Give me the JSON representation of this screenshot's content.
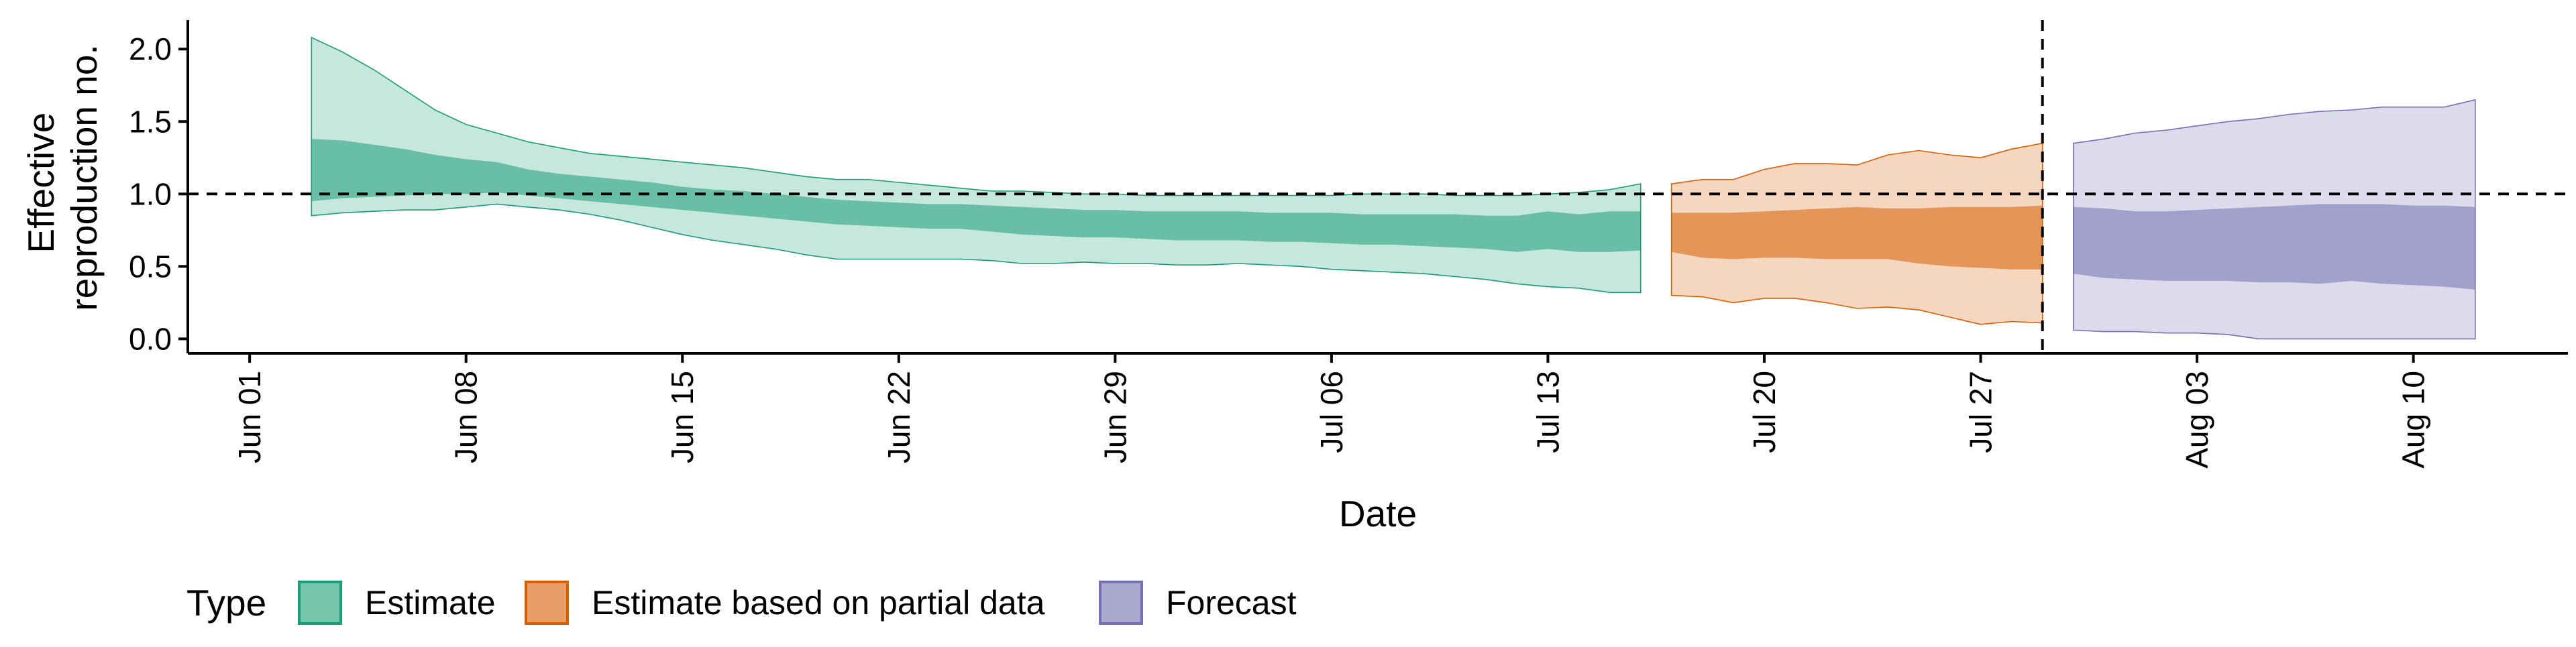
{
  "chart_data": {
    "type": "area",
    "xlabel": "Date",
    "ylabel_lines": [
      "Effective",
      "reproduction no."
    ],
    "ylim": [
      -0.1,
      2.2
    ],
    "yticks": [
      0.0,
      0.5,
      1.0,
      1.5,
      2.0
    ],
    "ytick_labels": [
      "0.0",
      "0.5",
      "1.0",
      "1.5",
      "2.0"
    ],
    "xlim": [
      "2020-05-30",
      "2020-08-15"
    ],
    "xticks": [
      "2020-06-01",
      "2020-06-08",
      "2020-06-15",
      "2020-06-22",
      "2020-06-29",
      "2020-07-06",
      "2020-07-13",
      "2020-07-20",
      "2020-07-27",
      "2020-08-03",
      "2020-08-10"
    ],
    "xtick_labels": [
      "Jun 01",
      "Jun 08",
      "Jun 15",
      "Jun 22",
      "Jun 29",
      "Jul 06",
      "Jul 13",
      "Jul 20",
      "Jul 27",
      "Aug 03",
      "Aug 10"
    ],
    "reference_hline": 1.0,
    "reference_vline": "2020-07-29",
    "legend": {
      "title": "Type",
      "position": "bottom-left",
      "entries": [
        {
          "label": "Estimate",
          "color": "#1B9E77"
        },
        {
          "label": "Estimate based on partial data",
          "color": "#D95F02"
        },
        {
          "label": "Forecast",
          "color": "#7570B3"
        }
      ]
    },
    "series": [
      {
        "name": "Estimate",
        "color": "#1B9E77",
        "dates": [
          "2020-06-03",
          "2020-06-04",
          "2020-06-05",
          "2020-06-06",
          "2020-06-07",
          "2020-06-08",
          "2020-06-09",
          "2020-06-10",
          "2020-06-11",
          "2020-06-12",
          "2020-06-13",
          "2020-06-14",
          "2020-06-15",
          "2020-06-16",
          "2020-06-17",
          "2020-06-18",
          "2020-06-19",
          "2020-06-20",
          "2020-06-21",
          "2020-06-22",
          "2020-06-23",
          "2020-06-24",
          "2020-06-25",
          "2020-06-26",
          "2020-06-27",
          "2020-06-28",
          "2020-06-29",
          "2020-06-30",
          "2020-07-01",
          "2020-07-02",
          "2020-07-03",
          "2020-07-04",
          "2020-07-05",
          "2020-07-06",
          "2020-07-07",
          "2020-07-08",
          "2020-07-09",
          "2020-07-10",
          "2020-07-11",
          "2020-07-12",
          "2020-07-13",
          "2020-07-14",
          "2020-07-15",
          "2020-07-16"
        ],
        "lower90": [
          0.85,
          0.87,
          0.88,
          0.89,
          0.89,
          0.91,
          0.93,
          0.91,
          0.89,
          0.86,
          0.82,
          0.77,
          0.72,
          0.68,
          0.65,
          0.62,
          0.58,
          0.55,
          0.55,
          0.55,
          0.55,
          0.55,
          0.54,
          0.52,
          0.52,
          0.53,
          0.52,
          0.52,
          0.51,
          0.51,
          0.52,
          0.51,
          0.5,
          0.48,
          0.47,
          0.46,
          0.45,
          0.43,
          0.41,
          0.38,
          0.36,
          0.35,
          0.32,
          0.32
        ],
        "upper90": [
          2.08,
          1.98,
          1.86,
          1.72,
          1.58,
          1.48,
          1.42,
          1.36,
          1.32,
          1.28,
          1.26,
          1.24,
          1.22,
          1.2,
          1.18,
          1.15,
          1.12,
          1.1,
          1.1,
          1.08,
          1.06,
          1.04,
          1.02,
          1.02,
          1.01,
          1.0,
          1.0,
          0.99,
          0.99,
          0.99,
          0.99,
          0.99,
          0.99,
          0.99,
          1.0,
          1.0,
          1.0,
          0.99,
          0.99,
          0.99,
          1.0,
          1.01,
          1.03,
          1.07
        ],
        "lower50": [
          0.95,
          0.97,
          0.98,
          0.99,
          1.0,
          1.0,
          1.01,
          0.99,
          0.97,
          0.95,
          0.93,
          0.91,
          0.89,
          0.87,
          0.85,
          0.83,
          0.81,
          0.79,
          0.78,
          0.77,
          0.76,
          0.76,
          0.74,
          0.72,
          0.71,
          0.7,
          0.7,
          0.69,
          0.68,
          0.68,
          0.68,
          0.67,
          0.67,
          0.66,
          0.65,
          0.65,
          0.64,
          0.63,
          0.62,
          0.6,
          0.62,
          0.6,
          0.6,
          0.61
        ],
        "upper50": [
          1.38,
          1.37,
          1.34,
          1.31,
          1.27,
          1.24,
          1.22,
          1.17,
          1.14,
          1.12,
          1.1,
          1.08,
          1.05,
          1.03,
          1.02,
          1.0,
          0.98,
          0.96,
          0.95,
          0.94,
          0.93,
          0.93,
          0.92,
          0.91,
          0.9,
          0.89,
          0.89,
          0.88,
          0.88,
          0.88,
          0.88,
          0.87,
          0.87,
          0.87,
          0.86,
          0.86,
          0.86,
          0.86,
          0.85,
          0.85,
          0.88,
          0.86,
          0.88,
          0.88
        ]
      },
      {
        "name": "Estimate based on partial data",
        "color": "#D95F02",
        "dates": [
          "2020-07-17",
          "2020-07-18",
          "2020-07-19",
          "2020-07-20",
          "2020-07-21",
          "2020-07-22",
          "2020-07-23",
          "2020-07-24",
          "2020-07-25",
          "2020-07-26",
          "2020-07-27",
          "2020-07-28",
          "2020-07-29"
        ],
        "lower90": [
          0.3,
          0.29,
          0.25,
          0.28,
          0.28,
          0.25,
          0.21,
          0.22,
          0.2,
          0.15,
          0.1,
          0.12,
          0.11
        ],
        "upper90": [
          1.07,
          1.1,
          1.1,
          1.17,
          1.21,
          1.21,
          1.2,
          1.27,
          1.3,
          1.27,
          1.25,
          1.31,
          1.35
        ],
        "lower50": [
          0.6,
          0.56,
          0.55,
          0.56,
          0.56,
          0.55,
          0.55,
          0.55,
          0.52,
          0.5,
          0.49,
          0.48,
          0.48
        ],
        "upper50": [
          0.87,
          0.87,
          0.87,
          0.88,
          0.89,
          0.9,
          0.91,
          0.9,
          0.9,
          0.91,
          0.91,
          0.91,
          0.92
        ]
      },
      {
        "name": "Forecast",
        "color": "#7570B3",
        "dates": [
          "2020-07-30",
          "2020-07-31",
          "2020-08-01",
          "2020-08-02",
          "2020-08-03",
          "2020-08-04",
          "2020-08-05",
          "2020-08-06",
          "2020-08-07",
          "2020-08-08",
          "2020-08-09",
          "2020-08-10",
          "2020-08-11",
          "2020-08-12"
        ],
        "lower90": [
          0.06,
          0.05,
          0.05,
          0.04,
          0.04,
          0.03,
          0.0,
          0.0,
          0.0,
          0.0,
          0.0,
          0.0,
          0.0,
          0.0
        ],
        "upper90": [
          1.35,
          1.38,
          1.42,
          1.44,
          1.47,
          1.5,
          1.52,
          1.55,
          1.57,
          1.58,
          1.6,
          1.6,
          1.6,
          1.65
        ],
        "lower50": [
          0.45,
          0.42,
          0.41,
          0.4,
          0.4,
          0.4,
          0.39,
          0.39,
          0.38,
          0.4,
          0.38,
          0.37,
          0.36,
          0.34
        ],
        "upper50": [
          0.91,
          0.9,
          0.88,
          0.88,
          0.89,
          0.9,
          0.91,
          0.92,
          0.93,
          0.93,
          0.93,
          0.92,
          0.92,
          0.91
        ]
      }
    ]
  }
}
